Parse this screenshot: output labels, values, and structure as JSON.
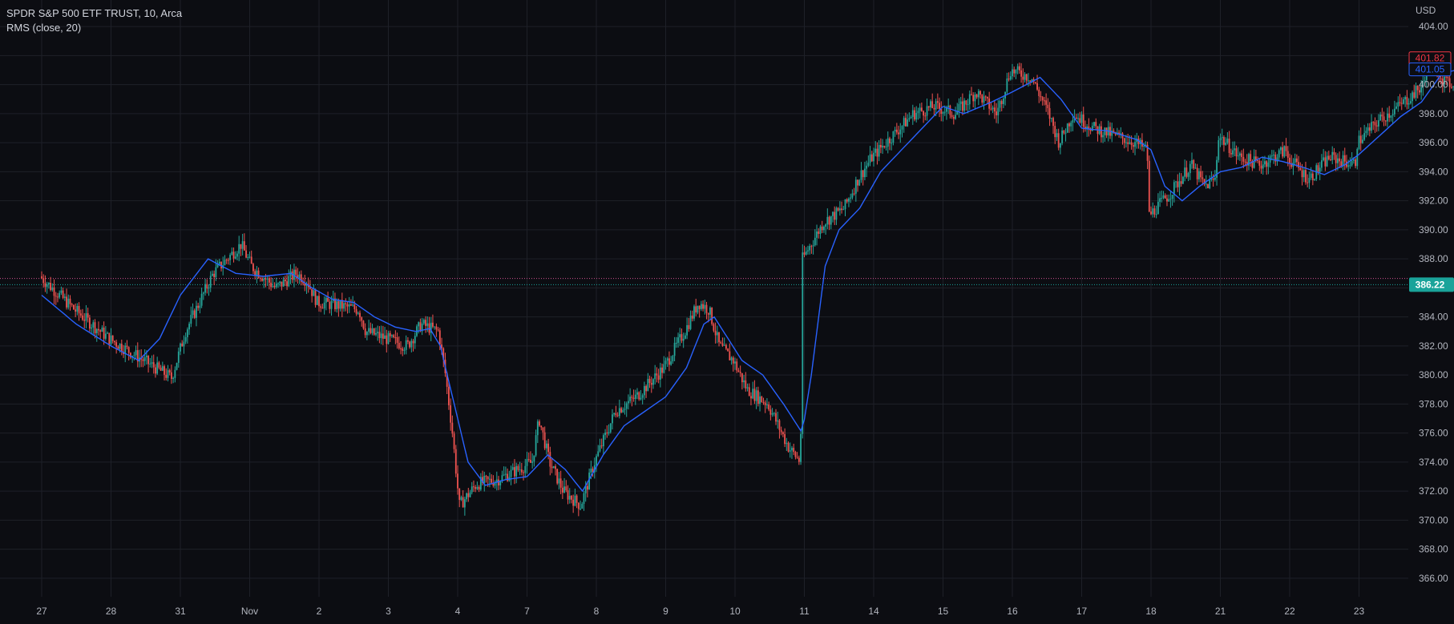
{
  "chart_data": {
    "type": "candlestick",
    "symbol_title": "SPDR S&P 500 ETF TRUST, 10, Arca",
    "indicator_label": "RMS (close, 20)",
    "currency": "USD",
    "ylim": [
      365,
      405.5
    ],
    "y_ticks": [
      "366.00",
      "368.00",
      "370.00",
      "372.00",
      "374.00",
      "376.00",
      "378.00",
      "380.00",
      "382.00",
      "384.00",
      "386.00",
      "388.00",
      "390.00",
      "392.00",
      "394.00",
      "396.00",
      "398.00",
      "400.00",
      "402.00",
      "404.00"
    ],
    "x_ticks": [
      "27",
      "28",
      "31",
      "Nov",
      "2",
      "3",
      "4",
      "7",
      "8",
      "9",
      "10",
      "11",
      "14",
      "15",
      "16",
      "17",
      "18",
      "21",
      "22",
      "23"
    ],
    "close_anchors": [
      [
        0,
        386.8
      ],
      [
        0.5,
        384.5
      ],
      [
        1,
        382.5
      ],
      [
        1.5,
        381.0
      ],
      [
        1.9,
        379.8
      ],
      [
        2.1,
        383.0
      ],
      [
        2.5,
        387.0
      ],
      [
        2.9,
        389.0
      ],
      [
        3.05,
        387.5
      ],
      [
        3.4,
        386.0
      ],
      [
        3.7,
        387.0
      ],
      [
        3.85,
        386.5
      ],
      [
        4.0,
        385.0
      ],
      [
        4.3,
        384.8
      ],
      [
        4.6,
        384.5
      ],
      [
        4.7,
        383.0
      ],
      [
        5.0,
        382.5
      ],
      [
        5.3,
        382.0
      ],
      [
        5.5,
        383.5
      ],
      [
        5.75,
        383.0
      ],
      [
        5.85,
        380.0
      ],
      [
        5.95,
        376.0
      ],
      [
        6.05,
        371.0
      ],
      [
        6.3,
        372.5
      ],
      [
        6.6,
        372.8
      ],
      [
        6.9,
        373.5
      ],
      [
        7.1,
        374.0
      ],
      [
        7.2,
        377.0
      ],
      [
        7.35,
        374.0
      ],
      [
        7.55,
        372.0
      ],
      [
        7.8,
        371.0
      ],
      [
        8.0,
        374.0
      ],
      [
        8.3,
        377.5
      ],
      [
        8.6,
        378.5
      ],
      [
        9.0,
        380.5
      ],
      [
        9.3,
        383.0
      ],
      [
        9.5,
        385.0
      ],
      [
        9.65,
        384.5
      ],
      [
        9.8,
        382.0
      ],
      [
        10.0,
        381.0
      ],
      [
        10.2,
        379.0
      ],
      [
        10.5,
        378.0
      ],
      [
        10.8,
        375.0
      ],
      [
        10.97,
        374.0
      ],
      [
        11.0,
        388.0
      ],
      [
        11.3,
        390.5
      ],
      [
        11.6,
        391.5
      ],
      [
        11.8,
        393.5
      ],
      [
        12.0,
        395.0
      ],
      [
        12.3,
        396.5
      ],
      [
        12.6,
        398.0
      ],
      [
        12.9,
        398.5
      ],
      [
        13.2,
        398.0
      ],
      [
        13.5,
        399.5
      ],
      [
        13.8,
        398.0
      ],
      [
        14.0,
        401.0
      ],
      [
        14.3,
        400.5
      ],
      [
        14.55,
        398.0
      ],
      [
        14.7,
        396.0
      ],
      [
        14.9,
        398.0
      ],
      [
        15.2,
        397.0
      ],
      [
        15.5,
        396.5
      ],
      [
        15.8,
        396.0
      ],
      [
        15.97,
        395.5
      ],
      [
        16.0,
        391.0
      ],
      [
        16.3,
        392.5
      ],
      [
        16.6,
        394.5
      ],
      [
        16.8,
        393.0
      ],
      [
        16.95,
        393.5
      ],
      [
        17.0,
        396.5
      ],
      [
        17.3,
        395.0
      ],
      [
        17.6,
        394.5
      ],
      [
        17.97,
        395.5
      ],
      [
        18.0,
        395.0
      ],
      [
        18.3,
        393.5
      ],
      [
        18.6,
        395.0
      ],
      [
        18.97,
        394.5
      ],
      [
        19.0,
        396.0
      ],
      [
        19.3,
        397.5
      ],
      [
        19.6,
        398.5
      ],
      [
        19.97,
        400.0
      ],
      [
        20.0,
        402.0
      ],
      [
        20.3,
        400.0
      ],
      [
        20.5,
        400.5
      ]
    ],
    "rms_anchors": [
      [
        0,
        385.5
      ],
      [
        0.5,
        383.5
      ],
      [
        1.0,
        382.0
      ],
      [
        1.4,
        381.0
      ],
      [
        1.7,
        382.5
      ],
      [
        2.0,
        385.5
      ],
      [
        2.4,
        388.0
      ],
      [
        2.8,
        387.0
      ],
      [
        3.2,
        386.8
      ],
      [
        3.6,
        387.0
      ],
      [
        3.9,
        386.0
      ],
      [
        4.2,
        385.2
      ],
      [
        4.5,
        385.0
      ],
      [
        4.8,
        384.0
      ],
      [
        5.1,
        383.3
      ],
      [
        5.4,
        383.0
      ],
      [
        5.6,
        383.2
      ],
      [
        5.75,
        382.0
      ],
      [
        5.95,
        378.0
      ],
      [
        6.15,
        374.0
      ],
      [
        6.4,
        372.4
      ],
      [
        6.7,
        372.8
      ],
      [
        7.0,
        373.0
      ],
      [
        7.3,
        374.5
      ],
      [
        7.55,
        373.5
      ],
      [
        7.8,
        372.0
      ],
      [
        8.1,
        374.5
      ],
      [
        8.4,
        376.5
      ],
      [
        8.7,
        377.5
      ],
      [
        9.0,
        378.5
      ],
      [
        9.3,
        380.5
      ],
      [
        9.55,
        383.5
      ],
      [
        9.7,
        384.0
      ],
      [
        9.9,
        382.5
      ],
      [
        10.1,
        381.0
      ],
      [
        10.4,
        380.0
      ],
      [
        10.7,
        378.0
      ],
      [
        10.97,
        376.0
      ],
      [
        11.1,
        380.0
      ],
      [
        11.3,
        387.5
      ],
      [
        11.5,
        390.0
      ],
      [
        11.8,
        391.5
      ],
      [
        12.1,
        394.0
      ],
      [
        12.4,
        395.5
      ],
      [
        12.7,
        397.0
      ],
      [
        13.0,
        398.5
      ],
      [
        13.3,
        398.0
      ],
      [
        13.7,
        398.8
      ],
      [
        14.0,
        399.5
      ],
      [
        14.4,
        400.5
      ],
      [
        14.7,
        399.0
      ],
      [
        15.0,
        397.0
      ],
      [
        15.4,
        396.8
      ],
      [
        15.8,
        396.2
      ],
      [
        16.0,
        395.5
      ],
      [
        16.2,
        393.0
      ],
      [
        16.45,
        392.0
      ],
      [
        16.7,
        393.0
      ],
      [
        17.0,
        394.0
      ],
      [
        17.3,
        394.3
      ],
      [
        17.6,
        395.0
      ],
      [
        17.9,
        394.7
      ],
      [
        18.2,
        394.3
      ],
      [
        18.5,
        393.8
      ],
      [
        18.8,
        394.5
      ],
      [
        19.0,
        395.2
      ],
      [
        19.3,
        396.5
      ],
      [
        19.6,
        397.8
      ],
      [
        19.9,
        398.8
      ],
      [
        20.2,
        400.8
      ],
      [
        20.5,
        401.1
      ]
    ],
    "last_price": {
      "label": "401.82",
      "value": 401.82,
      "color": "#f23645"
    },
    "rms_value": {
      "label": "401.05",
      "value": 401.05,
      "color": "#2962ff"
    },
    "crosshair": {
      "label": "386.22",
      "value": 386.22,
      "color": "#1aa39a"
    },
    "ref_line_value": 386.65,
    "colors": {
      "up": "#26a69a",
      "down": "#ef5350",
      "rms": "#2962ff",
      "grid": "#1e2028",
      "text": "#b2b5be",
      "bg": "#0c0d12"
    }
  }
}
